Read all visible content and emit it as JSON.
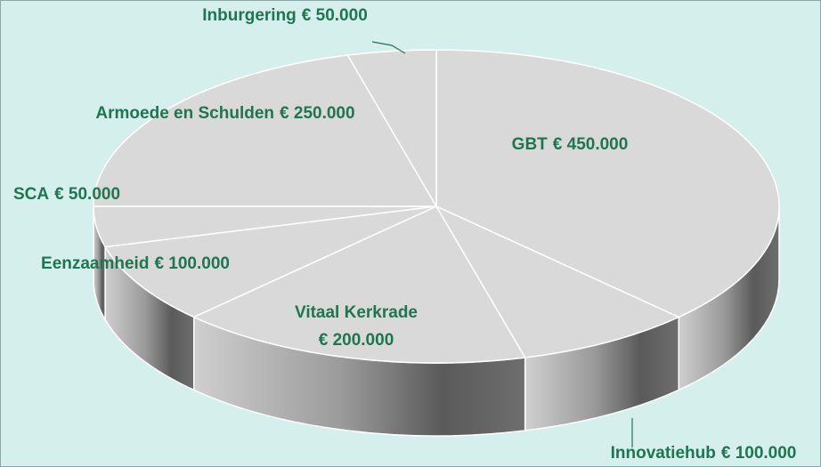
{
  "chart_data": {
    "type": "pie3d",
    "categories": [
      "GBT",
      "Innovatiehub",
      "Vitaal Kerkrade",
      "Eenzaamheid",
      "SCA",
      "Armoede en Schulden",
      "Inburgering"
    ],
    "values": [
      450000,
      100000,
      200000,
      100000,
      50000,
      250000,
      50000
    ],
    "value_labels": [
      "€ 450.000",
      "€ 100.000",
      "€ 200.000",
      "€ 100.000",
      "€ 50.000",
      "€ 250.000",
      "€ 50.000"
    ],
    "color": "#d9d9d9"
  }
}
